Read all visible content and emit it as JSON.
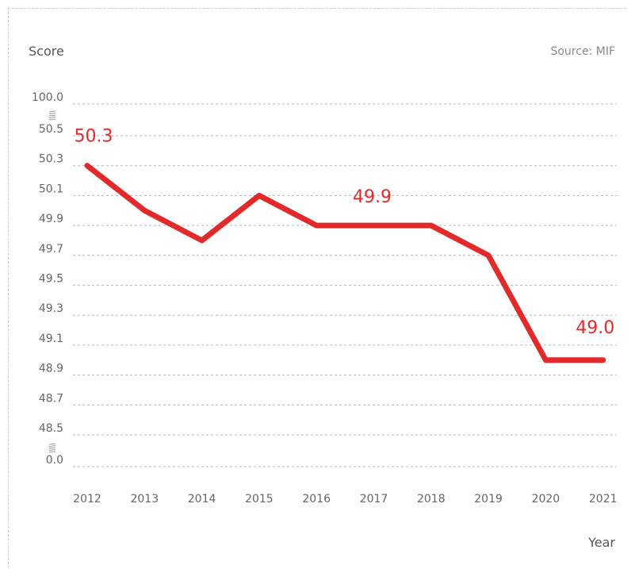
{
  "chart_data": {
    "type": "line",
    "ylabel": "Score",
    "xlabel": "Year",
    "source": "Source: MIF",
    "x": [
      "2012",
      "2013",
      "2014",
      "2015",
      "2016",
      "2017",
      "2018",
      "2019",
      "2020",
      "2021"
    ],
    "series": [
      {
        "values": [
          50.3,
          50.0,
          49.8,
          50.1,
          49.9,
          49.9,
          49.9,
          49.7,
          49.0,
          49.0
        ],
        "color": "#e32a2a"
      }
    ],
    "y_ticks": [
      "100.0",
      "50.5",
      "50.3",
      "50.1",
      "49.9",
      "49.7",
      "49.5",
      "49.3",
      "49.1",
      "48.9",
      "48.7",
      "48.5",
      "0.0"
    ],
    "y_tick_values": [
      100.0,
      50.5,
      50.3,
      50.1,
      49.9,
      49.7,
      49.5,
      49.3,
      49.1,
      48.9,
      48.7,
      48.5,
      0.0
    ],
    "axis_breaks": [
      "between 100.0 and 50.5",
      "between 48.5 and 0.0"
    ],
    "annotations": [
      {
        "label": "50.3",
        "x": "2012"
      },
      {
        "label": "49.9",
        "x": "2017"
      },
      {
        "label": "49.0",
        "x": "2021"
      }
    ],
    "grid": true
  }
}
